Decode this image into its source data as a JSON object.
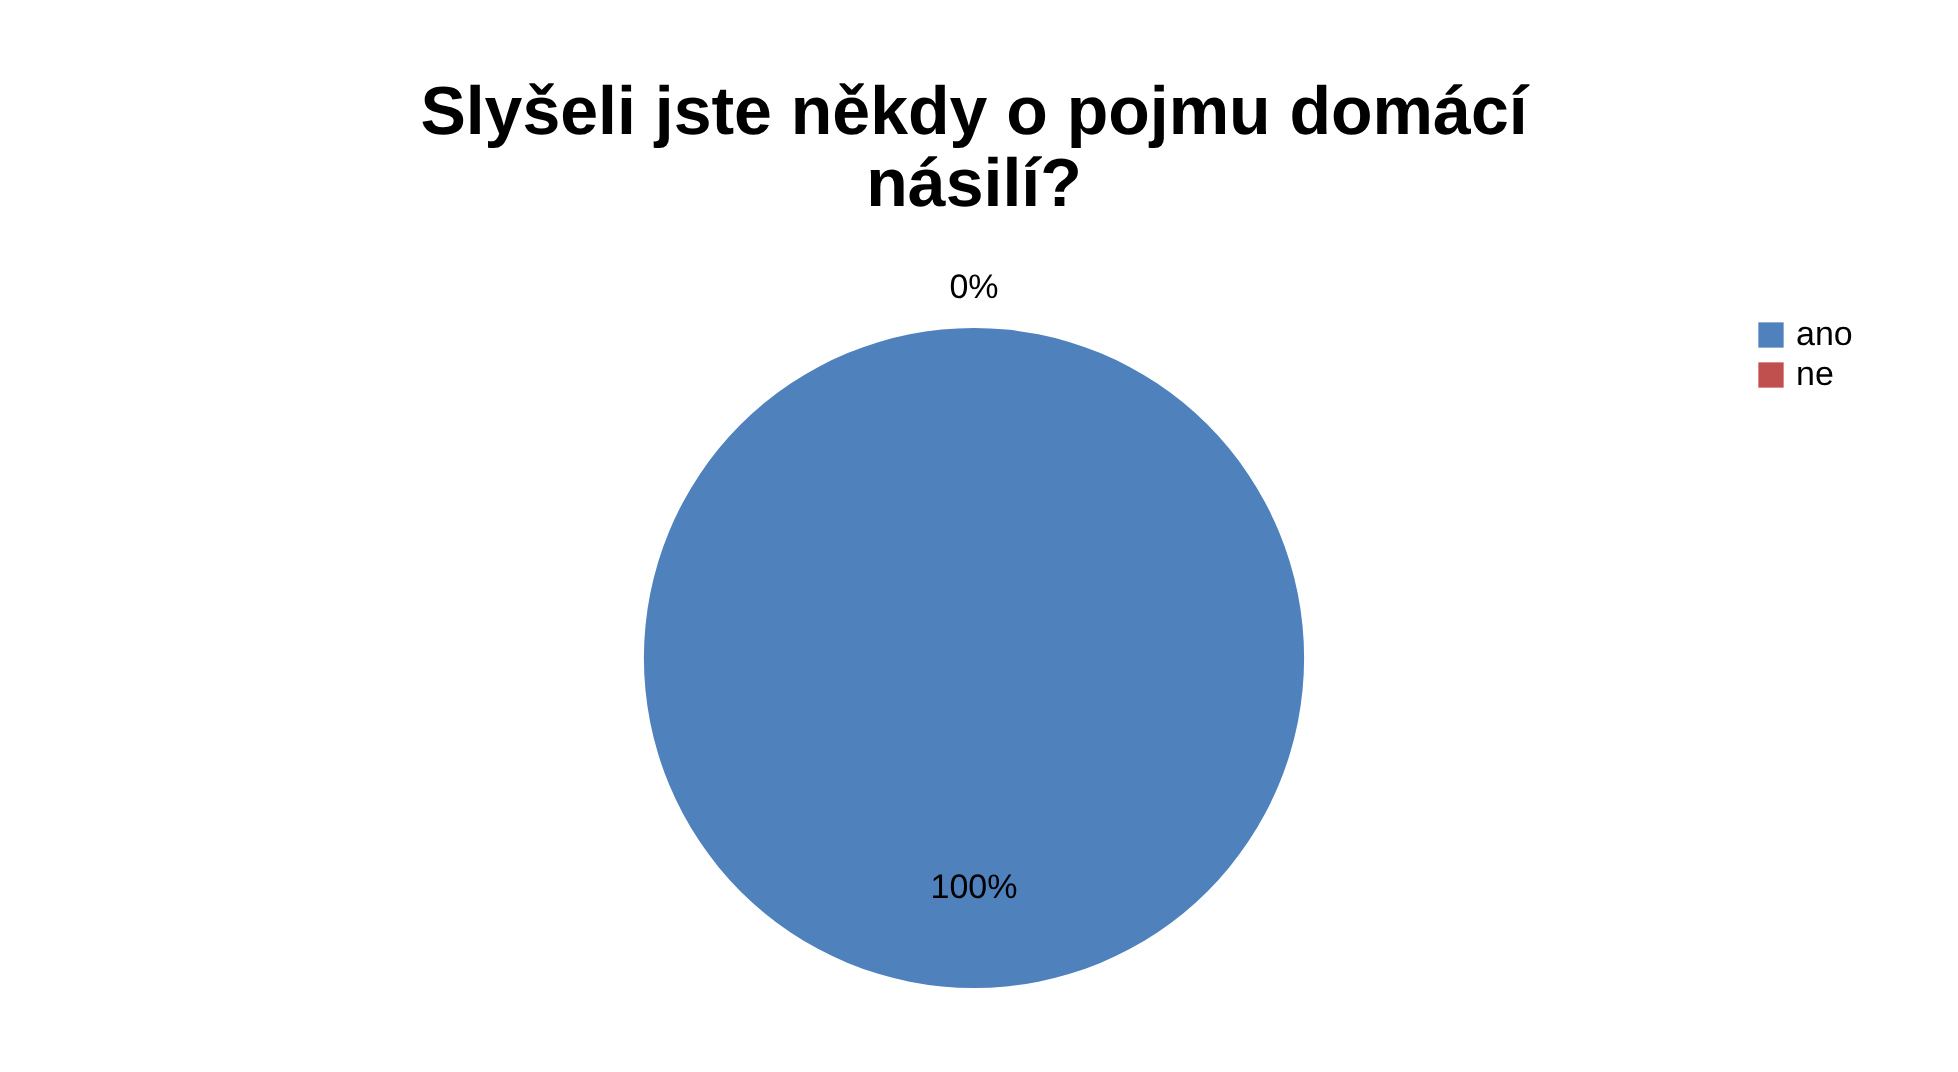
{
  "chart_data": {
    "type": "pie",
    "title": "Slyšeli jste někdy o pojmu domácí násilí?",
    "categories": [
      "ano",
      "ne"
    ],
    "values": [
      100,
      0
    ],
    "colors": [
      "#4f81bd",
      "#c0504d"
    ],
    "value_labels": [
      "100%",
      "0%"
    ],
    "legend": "right"
  }
}
